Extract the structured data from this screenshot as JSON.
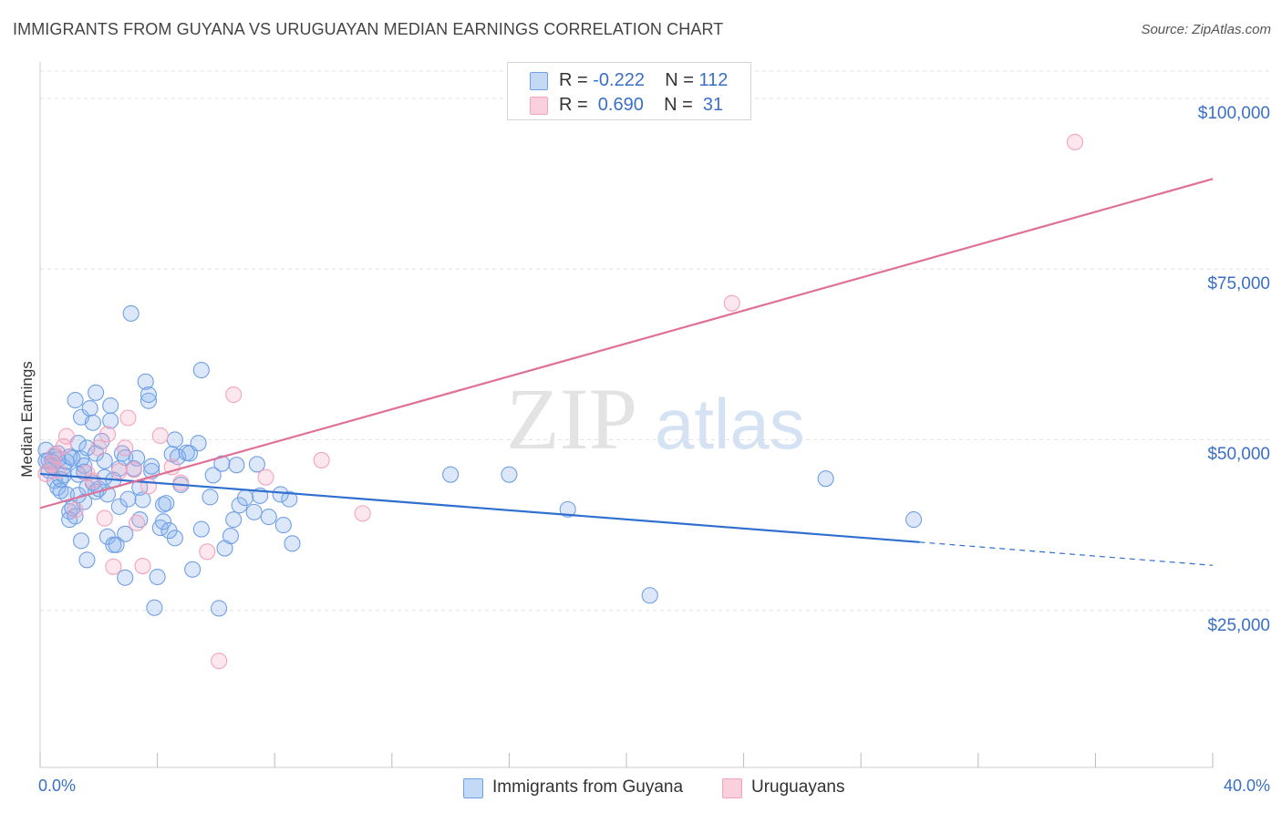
{
  "chart_data": {
    "type": "scatter",
    "title": "IMMIGRANTS FROM GUYANA VS URUGUAYAN MEDIAN EARNINGS CORRELATION CHART",
    "source": "Source: ZipAtlas.com",
    "watermark": {
      "zip": "ZIP",
      "atlas": "atlas"
    },
    "ylabel": "Median Earnings",
    "xlim": [
      0,
      40
    ],
    "ylim": [
      2000,
      104000
    ],
    "x_tick_labels": [
      "0.0%",
      "40.0%"
    ],
    "y_ticks": [
      {
        "value": 25000,
        "label": "$25,000"
      },
      {
        "value": 50000,
        "label": "$50,000"
      },
      {
        "value": 75000,
        "label": "$75,000"
      },
      {
        "value": 100000,
        "label": "$100,000"
      }
    ],
    "legend": [
      {
        "r_label": "R =",
        "r": "-0.222",
        "n_label": "N =",
        "n": "112"
      },
      {
        "r_label": "R =",
        "r": " 0.690",
        "n_label": "N =",
        "n": " 31"
      }
    ],
    "series": [
      {
        "name": "Immigrants from Guyana",
        "color": "#6fa0e6",
        "line_color": "#2f6fd0",
        "trend": {
          "x0": 0,
          "y0": 45000,
          "x1": 30,
          "y1": 35000,
          "x_dash_end": 40,
          "y_dash_end": 31600
        },
        "points": [
          [
            0.2,
            48500
          ],
          [
            0.3,
            47000
          ],
          [
            0.3,
            45500
          ],
          [
            0.4,
            46800
          ],
          [
            0.5,
            47500
          ],
          [
            0.5,
            44000
          ],
          [
            0.6,
            43000
          ],
          [
            0.6,
            48000
          ],
          [
            0.7,
            42500
          ],
          [
            0.8,
            46000
          ],
          [
            0.8,
            44800
          ],
          [
            0.9,
            42000
          ],
          [
            1.0,
            47500
          ],
          [
            1.0,
            39500
          ],
          [
            1.0,
            38300
          ],
          [
            1.1,
            40000
          ],
          [
            1.2,
            55800
          ],
          [
            1.2,
            38800
          ],
          [
            1.3,
            49500
          ],
          [
            1.3,
            44900
          ],
          [
            1.4,
            53300
          ],
          [
            1.4,
            47200
          ],
          [
            1.4,
            35200
          ],
          [
            1.5,
            46200
          ],
          [
            1.5,
            45300
          ],
          [
            1.6,
            48800
          ],
          [
            1.6,
            43000
          ],
          [
            1.6,
            32400
          ],
          [
            1.7,
            54600
          ],
          [
            1.8,
            52500
          ],
          [
            1.9,
            48000
          ],
          [
            1.9,
            42400
          ],
          [
            1.9,
            56900
          ],
          [
            2.0,
            42800
          ],
          [
            2.1,
            49800
          ],
          [
            2.2,
            46900
          ],
          [
            2.2,
            44500
          ],
          [
            2.3,
            42000
          ],
          [
            2.3,
            35800
          ],
          [
            2.4,
            55000
          ],
          [
            2.4,
            52800
          ],
          [
            2.5,
            34600
          ],
          [
            2.6,
            34600
          ],
          [
            2.7,
            45800
          ],
          [
            2.8,
            48000
          ],
          [
            2.9,
            36200
          ],
          [
            2.9,
            47400
          ],
          [
            2.9,
            29800
          ],
          [
            3.1,
            68500
          ],
          [
            3.2,
            45800
          ],
          [
            3.3,
            47300
          ],
          [
            3.4,
            43000
          ],
          [
            3.4,
            38300
          ],
          [
            3.5,
            41200
          ],
          [
            3.6,
            58500
          ],
          [
            3.7,
            55700
          ],
          [
            3.7,
            56600
          ],
          [
            3.8,
            45400
          ],
          [
            3.9,
            25400
          ],
          [
            4.0,
            29900
          ],
          [
            4.1,
            37100
          ],
          [
            4.2,
            40500
          ],
          [
            4.2,
            38000
          ],
          [
            4.3,
            40700
          ],
          [
            4.5,
            47900
          ],
          [
            4.6,
            35600
          ],
          [
            4.6,
            50000
          ],
          [
            4.7,
            47500
          ],
          [
            4.8,
            43400
          ],
          [
            5.0,
            48100
          ],
          [
            5.1,
            48000
          ],
          [
            5.2,
            31000
          ],
          [
            5.4,
            49500
          ],
          [
            5.5,
            36900
          ],
          [
            5.5,
            60200
          ],
          [
            5.9,
            44800
          ],
          [
            6.1,
            25300
          ],
          [
            6.2,
            46500
          ],
          [
            6.3,
            34100
          ],
          [
            6.6,
            38300
          ],
          [
            6.7,
            46300
          ],
          [
            6.8,
            40400
          ],
          [
            7.0,
            41500
          ],
          [
            7.3,
            39400
          ],
          [
            7.4,
            46400
          ],
          [
            7.5,
            41800
          ],
          [
            7.8,
            38700
          ],
          [
            8.2,
            42000
          ],
          [
            8.3,
            37500
          ],
          [
            8.5,
            41300
          ],
          [
            8.6,
            34800
          ],
          [
            14.0,
            44900
          ],
          [
            16.0,
            44900
          ],
          [
            18.0,
            39800
          ],
          [
            20.8,
            27200
          ],
          [
            26.8,
            44300
          ],
          [
            29.8,
            38300
          ],
          [
            0.9,
            46800
          ],
          [
            1.5,
            40900
          ],
          [
            2.7,
            40200
          ],
          [
            3.8,
            46100
          ],
          [
            0.4,
            46200
          ],
          [
            0.7,
            44200
          ],
          [
            1.1,
            47300
          ],
          [
            1.8,
            43700
          ],
          [
            2.5,
            44100
          ],
          [
            3.0,
            41300
          ],
          [
            4.4,
            36700
          ],
          [
            5.8,
            41600
          ],
          [
            6.5,
            35900
          ],
          [
            0.2,
            46900
          ],
          [
            0.6,
            47100
          ],
          [
            1.3,
            41900
          ]
        ]
      },
      {
        "name": "Uruguayans",
        "color": "#f3a3bd",
        "line_color": "#e07098",
        "trend": {
          "x0": 0,
          "y0": 40000,
          "x1": 40,
          "y1": 88200
        },
        "points": [
          [
            0.2,
            45000
          ],
          [
            0.4,
            46500
          ],
          [
            0.5,
            47800
          ],
          [
            0.6,
            45500
          ],
          [
            0.8,
            49000
          ],
          [
            0.9,
            50500
          ],
          [
            1.2,
            39700
          ],
          [
            1.6,
            45100
          ],
          [
            1.8,
            44000
          ],
          [
            2.0,
            48800
          ],
          [
            2.2,
            38500
          ],
          [
            2.3,
            50800
          ],
          [
            2.5,
            31400
          ],
          [
            2.7,
            45400
          ],
          [
            2.9,
            48800
          ],
          [
            3.0,
            53200
          ],
          [
            3.2,
            45600
          ],
          [
            3.3,
            37800
          ],
          [
            3.5,
            31500
          ],
          [
            3.7,
            43200
          ],
          [
            4.1,
            50600
          ],
          [
            4.5,
            46000
          ],
          [
            4.8,
            43700
          ],
          [
            5.7,
            33600
          ],
          [
            6.1,
            17600
          ],
          [
            6.6,
            56600
          ],
          [
            7.7,
            44500
          ],
          [
            9.6,
            47000
          ],
          [
            11.0,
            39200
          ],
          [
            23.6,
            70000
          ],
          [
            35.3,
            93600
          ]
        ]
      }
    ]
  },
  "legend_bottom": [
    {
      "label": "Immigrants from Guyana"
    },
    {
      "label": "Uruguayans"
    }
  ]
}
